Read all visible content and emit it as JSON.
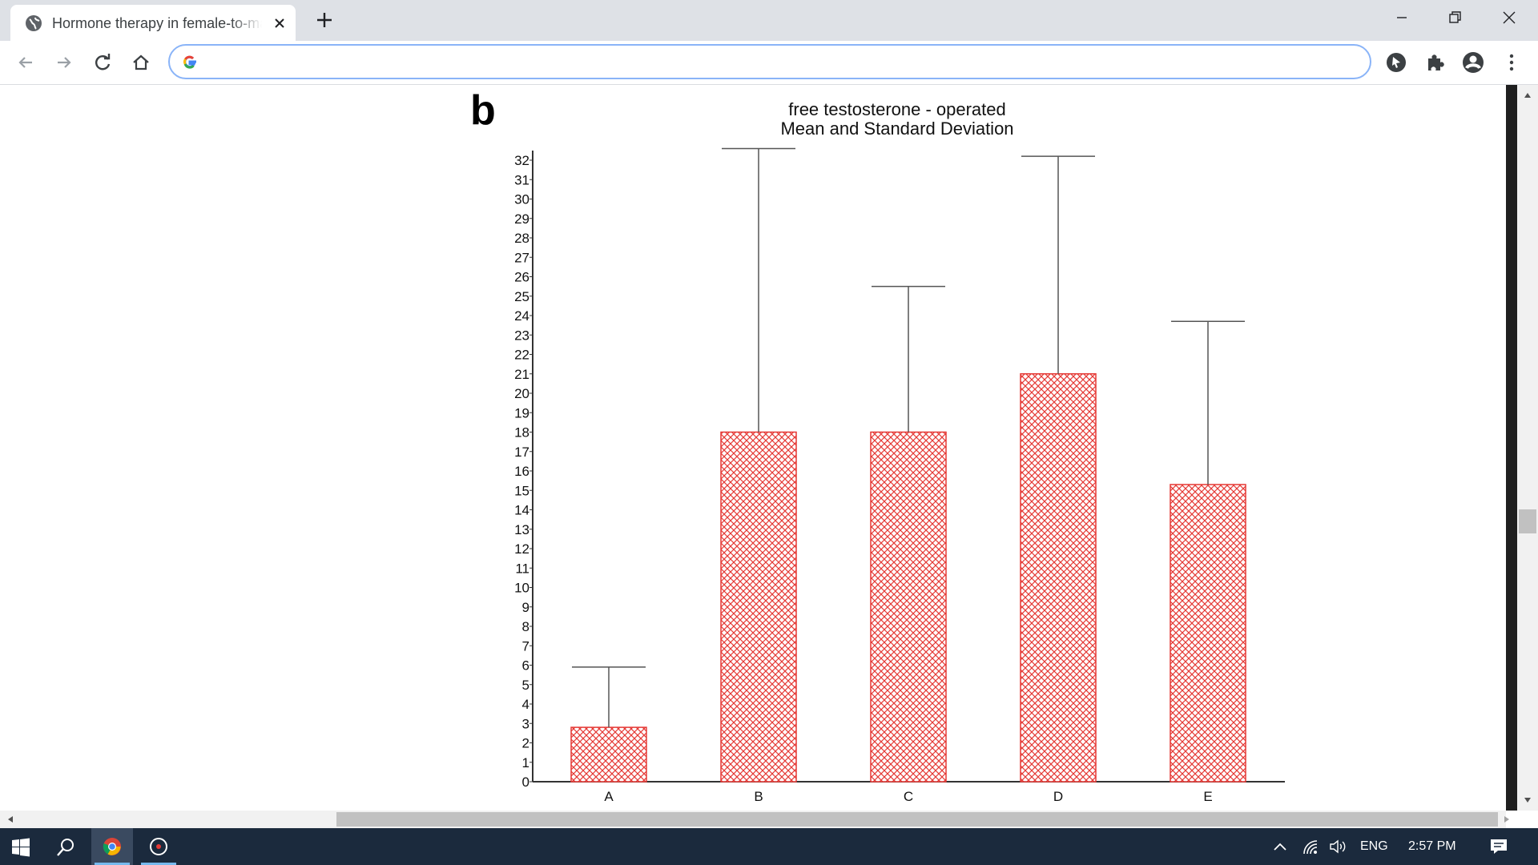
{
  "browser": {
    "tab_title": "Hormone therapy in female-to-male",
    "omnibox_value": "",
    "window_controls": [
      "minimize-icon",
      "restore-icon",
      "close-icon"
    ],
    "toolbar_icons": [
      "back-arrow-icon",
      "forward-arrow-icon",
      "reload-icon",
      "home-icon",
      "google-icon",
      "extension-cursor-icon",
      "puzzle-icon",
      "profile-icon",
      "menu-dots-icon"
    ]
  },
  "figure": {
    "label": "b"
  },
  "chart_data": {
    "type": "bar",
    "title": "free testosterone - operated",
    "subtitle": "Mean and Standard Deviation",
    "xlabel": "",
    "ylabel": "",
    "categories": [
      "A",
      "B",
      "C",
      "D",
      "E"
    ],
    "values": [
      2.8,
      18,
      18,
      21,
      15.3
    ],
    "error_upper": [
      5.9,
      32.6,
      25.5,
      32.2,
      23.7
    ],
    "ylim": [
      0,
      32
    ],
    "yticks": [
      0,
      1,
      2,
      3,
      4,
      5,
      6,
      7,
      8,
      9,
      10,
      11,
      12,
      13,
      14,
      15,
      16,
      17,
      18,
      19,
      20,
      21,
      22,
      23,
      24,
      25,
      26,
      27,
      28,
      29,
      30,
      31,
      32
    ],
    "bar_color": "#e53935",
    "bar_fill": "crosshatch",
    "grid": false,
    "legend": "none"
  },
  "taskbar": {
    "apps": [
      "windows-start-icon",
      "search-icon",
      "chrome-icon",
      "media-app-icon"
    ],
    "language": "ENG",
    "time": "2:57 PM",
    "tray_icons": [
      "chevron-up-icon",
      "wifi-icon",
      "volume-icon",
      "notification-icon"
    ]
  }
}
